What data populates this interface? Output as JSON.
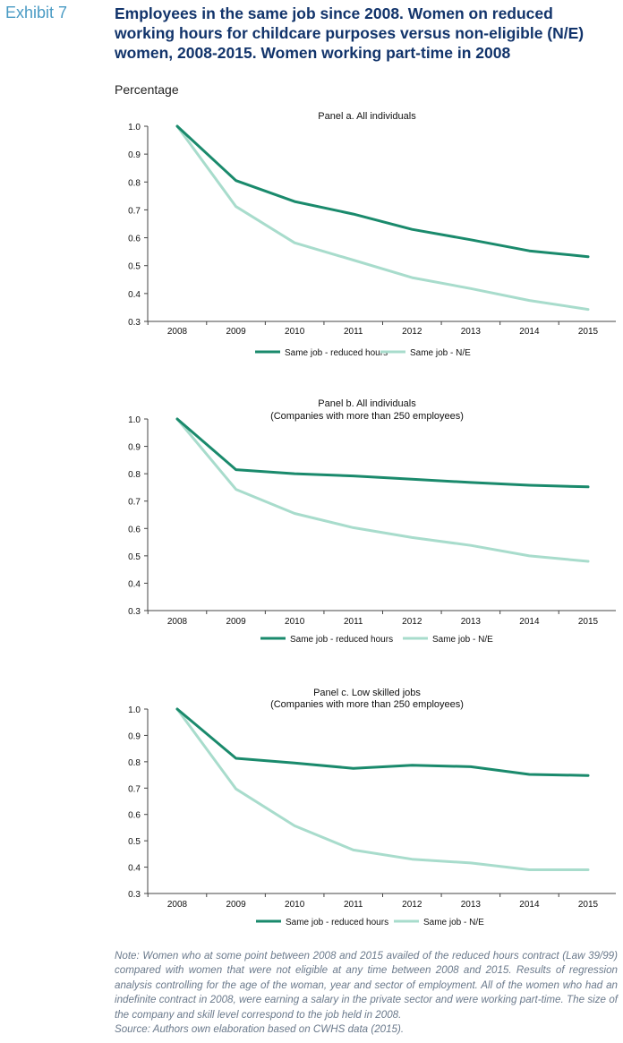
{
  "header": {
    "exhibit": "Exhibit 7",
    "title": "Employees in the same job since 2008. Women on reduced working hours for childcare purposes versus non-eligible (N/E) women, 2008-2015. Women working part-time in 2008",
    "unit": "Percentage"
  },
  "colors": {
    "dark": "#1a8a6c",
    "light": "#a8dccc",
    "title": "#12346b",
    "exhibit": "#4a9bc4",
    "note": "#6b7a8c"
  },
  "chart_data": [
    {
      "type": "line",
      "title": "Panel a. All individuals",
      "subtitle": "",
      "x": [
        "2008",
        "2009",
        "2010",
        "2011",
        "2012",
        "2013",
        "2014",
        "2015"
      ],
      "ylim": [
        0.3,
        1.0
      ],
      "yticks": [
        "1.0",
        "0.9",
        "0.8",
        "0.7",
        "0.6",
        "0.5",
        "0.4",
        "0.3"
      ],
      "legend_position": "bottom",
      "grid": false,
      "series": [
        {
          "name": "Same job - reduced hours",
          "color": "#1a8a6c",
          "values": [
            1.0,
            0.805,
            0.73,
            0.685,
            0.63,
            0.593,
            0.553,
            0.532
          ]
        },
        {
          "name": "Same job - N/E",
          "color": "#a8dccc",
          "values": [
            1.0,
            0.712,
            0.582,
            0.52,
            0.457,
            0.418,
            0.375,
            0.343
          ]
        }
      ]
    },
    {
      "type": "line",
      "title": "Panel b. All individuals",
      "subtitle": "(Companies with more than 250 employees)",
      "x": [
        "2008",
        "2009",
        "2010",
        "2011",
        "2012",
        "2013",
        "2014",
        "2015"
      ],
      "ylim": [
        0.3,
        1.0
      ],
      "yticks": [
        "1.0",
        "0.9",
        "0.8",
        "0.7",
        "0.6",
        "0.5",
        "0.4",
        "0.3"
      ],
      "legend_position": "bottom",
      "grid": false,
      "series": [
        {
          "name": "Same job - reduced hours",
          "color": "#1a8a6c",
          "values": [
            1.0,
            0.815,
            0.8,
            0.792,
            0.78,
            0.768,
            0.758,
            0.752
          ]
        },
        {
          "name": "Same job - N/E",
          "color": "#a8dccc",
          "values": [
            1.0,
            0.743,
            0.655,
            0.603,
            0.567,
            0.538,
            0.5,
            0.48
          ]
        }
      ]
    },
    {
      "type": "line",
      "title": "Panel c. Low skilled jobs",
      "subtitle": "(Companies with more than 250 employees)",
      "x": [
        "2008",
        "2009",
        "2010",
        "2011",
        "2012",
        "2013",
        "2014",
        "2015"
      ],
      "ylim": [
        0.3,
        1.0
      ],
      "yticks": [
        "1.0",
        "0.9",
        "0.8",
        "0.7",
        "0.6",
        "0.5",
        "0.4",
        "0.3"
      ],
      "legend_position": "bottom",
      "grid": false,
      "series": [
        {
          "name": "Same job - reduced hours",
          "color": "#1a8a6c",
          "values": [
            1.0,
            0.813,
            0.795,
            0.775,
            0.787,
            0.781,
            0.752,
            0.748
          ]
        },
        {
          "name": "Same job - N/E",
          "color": "#a8dccc",
          "values": [
            1.0,
            0.697,
            0.557,
            0.465,
            0.43,
            0.416,
            0.39,
            0.39
          ]
        }
      ]
    }
  ],
  "footer": {
    "note": "Note: Women who at some point between 2008 and 2015 availed of the reduced hours contract (Law 39/99) compared with women that were not eligible at any time between 2008 and 2015. Results of regression analysis controlling for the age of the woman, year and sector of employment. All of the women who had an indefinite contract in 2008, were earning a salary in the private sector and were working part-time. The size of the company and skill level correspond to the job held in 2008.",
    "source": "Source: Authors own elaboration based on CWHS data (2015)."
  }
}
